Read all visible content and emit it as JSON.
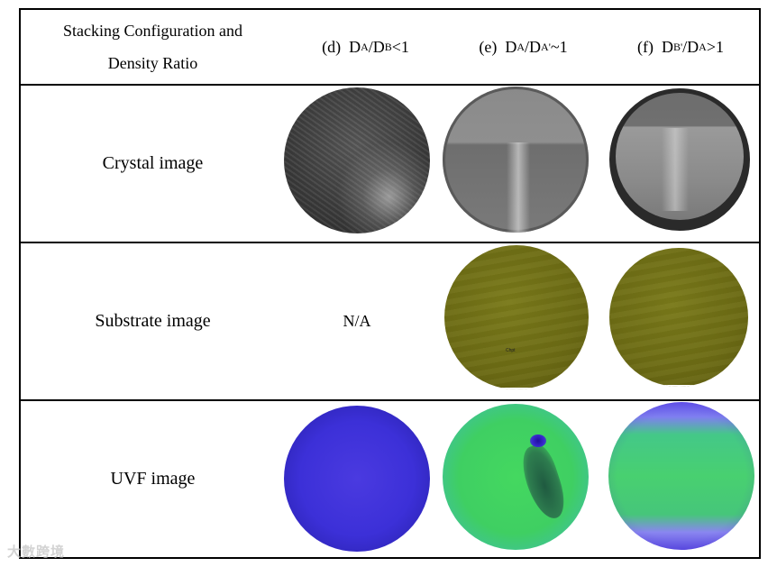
{
  "header": {
    "row_label_line1": "Stacking Configuration and",
    "row_label_line2": "Density Ratio",
    "col_d": {
      "prefix": "(d)",
      "a": "D",
      "sa": "A",
      "slash": "/D",
      "sb": "B",
      "suffix": " <1"
    },
    "col_e": {
      "prefix": "(e)",
      "a": "D",
      "sa": "A",
      "slash": "/D",
      "sb": "A'",
      "suffix": " ~1"
    },
    "col_f": {
      "prefix": "(f)",
      "a": "D",
      "sa": "B'",
      "slash": "/D",
      "sb": "A",
      "suffix": " >1"
    }
  },
  "rows": {
    "crystal": "Crystal image",
    "substrate": "Substrate image",
    "uvf": "UVF image"
  },
  "cells": {
    "substrate_d": "N/A",
    "substrate_e_mark": "Chpt"
  },
  "watermark": "大數跨境"
}
